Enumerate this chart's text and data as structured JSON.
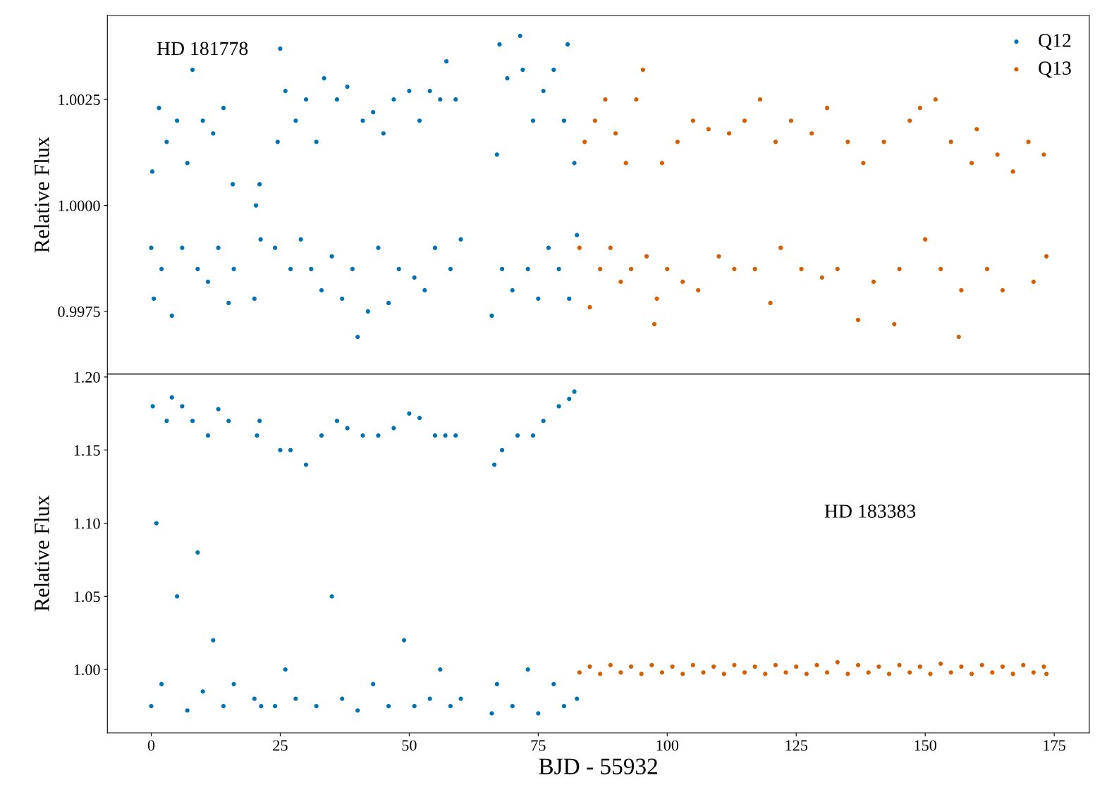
{
  "chart_data": [
    {
      "type": "scatter",
      "ylabel": "Relative Flux",
      "annotations": [
        "HD 181778"
      ],
      "xlim": [
        -8.5,
        181.8
      ],
      "ylim": [
        0.99602,
        1.00448
      ],
      "yticks": [
        {
          "value": 0.9975,
          "label": "0.9975"
        },
        {
          "value": 1.0,
          "label": "1.0000"
        },
        {
          "value": 1.0025,
          "label": "1.0025"
        }
      ],
      "tick_labels": "y",
      "legend": "top right",
      "marker": "circle",
      "grid": false,
      "series": [
        {
          "name": "Q12",
          "color": "#0072b2",
          "x": [
            0.0,
            0.2,
            0.5,
            1.5,
            2,
            3,
            4,
            5,
            6,
            7,
            8,
            9,
            10,
            11,
            12,
            13,
            14,
            15,
            15.8,
            16,
            20,
            20.3,
            21,
            21.2,
            24,
            24.5,
            25,
            26,
            27,
            28,
            29,
            30,
            31,
            32,
            33,
            33.5,
            35,
            36,
            37,
            38,
            39,
            40,
            41,
            42,
            43,
            44,
            45,
            46,
            47,
            48,
            50,
            51,
            52,
            53,
            54,
            55,
            56,
            57.2,
            58,
            59,
            60,
            66,
            67,
            67.5,
            68,
            69,
            70,
            71.5,
            72,
            73,
            74,
            75,
            76,
            77,
            78,
            79,
            80,
            80.7,
            81,
            82,
            82.5
          ],
          "values": [
            0.999,
            1.0008,
            0.9978,
            1.0023,
            0.9985,
            1.0015,
            0.9974,
            1.002,
            0.999,
            1.001,
            1.0032,
            0.9985,
            1.002,
            0.9982,
            1.0017,
            0.999,
            1.0023,
            0.9977,
            1.0005,
            0.9985,
            0.9978,
            1.0,
            1.0005,
            0.9992,
            0.999,
            1.0015,
            1.0037,
            1.0027,
            0.9985,
            1.002,
            0.9992,
            1.0025,
            0.9985,
            1.0015,
            0.998,
            1.003,
            0.9988,
            1.0025,
            0.9978,
            1.0028,
            0.9985,
            0.9969,
            1.002,
            0.9975,
            1.0022,
            0.999,
            1.0017,
            0.9977,
            1.0025,
            0.9985,
            1.0027,
            0.9983,
            1.002,
            0.998,
            1.0027,
            0.999,
            1.0025,
            1.0034,
            0.9985,
            1.0025,
            0.9992,
            0.9974,
            1.0012,
            1.0038,
            0.9985,
            1.003,
            0.998,
            1.004,
            1.0032,
            0.9985,
            1.002,
            0.9978,
            1.0027,
            0.999,
            1.0032,
            0.9985,
            1.002,
            1.0038,
            0.9978,
            1.001,
            0.9993
          ]
        },
        {
          "name": "Q13",
          "color": "#d55e00",
          "x": [
            83,
            84,
            85,
            86,
            87,
            88,
            89,
            90,
            91,
            92,
            93,
            94,
            95.3,
            96,
            97.5,
            98,
            99,
            100,
            102,
            103,
            105,
            106,
            108,
            110,
            112,
            113,
            115,
            117,
            118,
            120,
            121,
            122,
            124,
            126,
            128,
            130,
            131,
            133,
            135,
            137,
            138,
            140,
            142,
            144,
            145,
            147,
            149,
            150,
            152,
            153,
            155,
            156.5,
            157,
            159,
            160,
            162,
            164,
            165,
            167,
            170,
            171,
            173,
            173.5
          ],
          "values": [
            0.999,
            1.0015,
            0.9976,
            1.002,
            0.9985,
            1.0025,
            0.999,
            1.0017,
            0.9982,
            1.001,
            0.9985,
            1.0025,
            1.0032,
            0.9988,
            0.9972,
            0.9978,
            1.001,
            0.9985,
            1.0015,
            0.9982,
            1.002,
            0.998,
            1.0018,
            0.9988,
            1.0017,
            0.9985,
            1.002,
            0.9985,
            1.0025,
            0.9977,
            1.0015,
            0.999,
            1.002,
            0.9985,
            1.0017,
            0.9983,
            1.0023,
            0.9985,
            1.0015,
            0.9973,
            1.001,
            0.9982,
            1.0015,
            0.9972,
            0.9985,
            1.002,
            1.0023,
            0.9992,
            1.0025,
            0.9985,
            1.0015,
            0.9969,
            0.998,
            1.001,
            1.0018,
            0.9985,
            1.0012,
            0.998,
            1.0008,
            1.0015,
            0.9982,
            1.0012,
            0.9988
          ]
        }
      ]
    },
    {
      "type": "scatter",
      "ylabel": "Relative Flux",
      "xlabel": "BJD - 55932",
      "annotations": [
        "HD 183383"
      ],
      "xlim": [
        -8.5,
        181.8
      ],
      "xticks": [
        0,
        25,
        50,
        75,
        100,
        125,
        150,
        175
      ],
      "ylim": [
        0.9567,
        1.2019
      ],
      "yticks": [
        {
          "value": 1.0,
          "label": "1.00"
        },
        1.05,
        {
          "value": 1.1,
          "label": "1.10"
        },
        1.15,
        {
          "value": 1.2,
          "label": "1.20"
        }
      ],
      "marker": "circle",
      "grid": false,
      "series": [
        {
          "color": "#0072b2",
          "x": [
            0,
            0.3,
            1,
            2,
            3,
            4,
            5,
            6,
            7,
            8,
            9,
            10,
            11,
            12,
            13,
            14,
            15,
            16,
            20,
            20.5,
            21,
            21.3,
            24,
            25,
            26,
            27,
            28,
            30,
            32,
            33,
            35,
            36,
            37,
            38,
            40,
            41,
            43,
            44,
            46,
            47,
            49,
            50,
            51,
            52,
            54,
            55,
            56,
            57,
            58,
            59,
            60,
            66,
            66.5,
            67,
            68,
            70,
            71,
            73,
            74,
            75,
            76,
            78,
            79,
            80,
            81,
            82,
            82.5
          ],
          "values": [
            0.975,
            1.18,
            1.1,
            0.99,
            1.17,
            1.186,
            1.05,
            1.18,
            0.972,
            1.17,
            1.08,
            0.985,
            1.16,
            1.02,
            1.178,
            0.975,
            1.17,
            0.99,
            0.98,
            1.16,
            1.17,
            0.975,
            0.975,
            1.15,
            1.0,
            1.15,
            0.98,
            1.14,
            0.975,
            1.16,
            1.05,
            1.17,
            0.98,
            1.165,
            0.972,
            1.16,
            0.99,
            1.16,
            0.975,
            1.165,
            1.02,
            1.175,
            0.975,
            1.172,
            0.98,
            1.16,
            1.0,
            1.16,
            0.975,
            1.16,
            0.98,
            0.97,
            1.14,
            0.99,
            1.15,
            0.975,
            1.16,
            1.0,
            1.16,
            0.97,
            1.17,
            0.99,
            1.18,
            0.975,
            1.185,
            1.19,
            0.98
          ]
        },
        {
          "color": "#d55e00",
          "x": [
            83,
            85,
            87,
            89,
            91,
            93,
            95,
            97,
            99,
            101,
            103,
            105,
            107,
            109,
            111,
            113,
            115,
            117,
            119,
            121,
            123,
            125,
            127,
            129,
            131,
            133,
            135,
            137,
            139,
            141,
            143,
            145,
            147,
            149,
            151,
            153,
            155,
            157,
            159,
            161,
            163,
            165,
            167,
            169,
            171,
            173,
            173.5
          ],
          "values": [
            0.998,
            1.002,
            0.997,
            1.003,
            0.998,
            1.002,
            0.997,
            1.003,
            0.998,
            1.002,
            0.997,
            1.003,
            0.998,
            1.002,
            0.997,
            1.003,
            0.998,
            1.002,
            0.997,
            1.003,
            0.998,
            1.002,
            0.997,
            1.003,
            0.998,
            1.005,
            0.997,
            1.003,
            0.998,
            1.002,
            0.997,
            1.003,
            0.998,
            1.002,
            0.997,
            1.004,
            0.998,
            1.002,
            0.997,
            1.003,
            0.998,
            1.002,
            0.997,
            1.003,
            0.998,
            1.002,
            0.997
          ]
        }
      ]
    }
  ]
}
